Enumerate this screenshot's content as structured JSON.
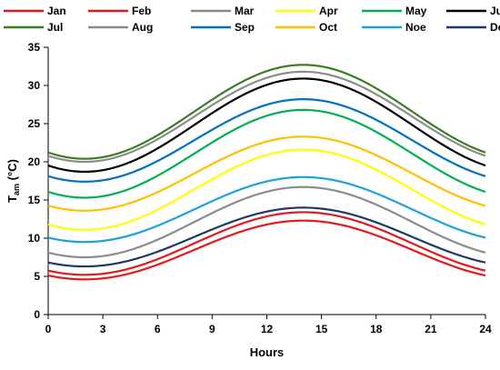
{
  "chart_data": {
    "type": "line",
    "xlabel": "Hours",
    "ylabel": {
      "base": "T",
      "sub": "am",
      "unit": " (°C)"
    },
    "xlim": [
      0,
      24
    ],
    "ylim": [
      0,
      35
    ],
    "xticks": [
      0,
      3,
      6,
      9,
      12,
      15,
      18,
      21,
      24
    ],
    "yticks": [
      0,
      5,
      10,
      15,
      20,
      25,
      30,
      35
    ],
    "grid": false,
    "legend_position": "top",
    "min_hour": 2,
    "max_hour": 14,
    "series": [
      {
        "name": "Jan",
        "color": "#e31a1c",
        "tmin": 4.6,
        "tmax": 12.3
      },
      {
        "name": "Feb",
        "color": "#e31a1c",
        "tmin": 5.2,
        "tmax": 13.4
      },
      {
        "name": "Mar",
        "color": "#8c8c8c",
        "tmin": 7.5,
        "tmax": 16.7
      },
      {
        "name": "Apr",
        "color": "#ffff00",
        "tmin": 11.1,
        "tmax": 21.6
      },
      {
        "name": "May",
        "color": "#00b050",
        "tmin": 15.3,
        "tmax": 26.8
      },
      {
        "name": "Jun",
        "color": "#000000",
        "tmin": 18.7,
        "tmax": 30.9
      },
      {
        "name": "Jul",
        "color": "#3a7d22",
        "tmin": 20.4,
        "tmax": 32.7
      },
      {
        "name": "Aug",
        "color": "#8c8c8c",
        "tmin": 20.0,
        "tmax": 31.8
      },
      {
        "name": "Sep",
        "color": "#0070c0",
        "tmin": 17.4,
        "tmax": 28.2
      },
      {
        "name": "Oct",
        "color": "#ffc000",
        "tmin": 13.6,
        "tmax": 23.3
      },
      {
        "name": "Noe",
        "color": "#1ea0dc",
        "tmin": 9.5,
        "tmax": 18.0
      },
      {
        "name": "Dec",
        "color": "#1f3864",
        "tmin": 6.3,
        "tmax": 14.0
      }
    ]
  }
}
